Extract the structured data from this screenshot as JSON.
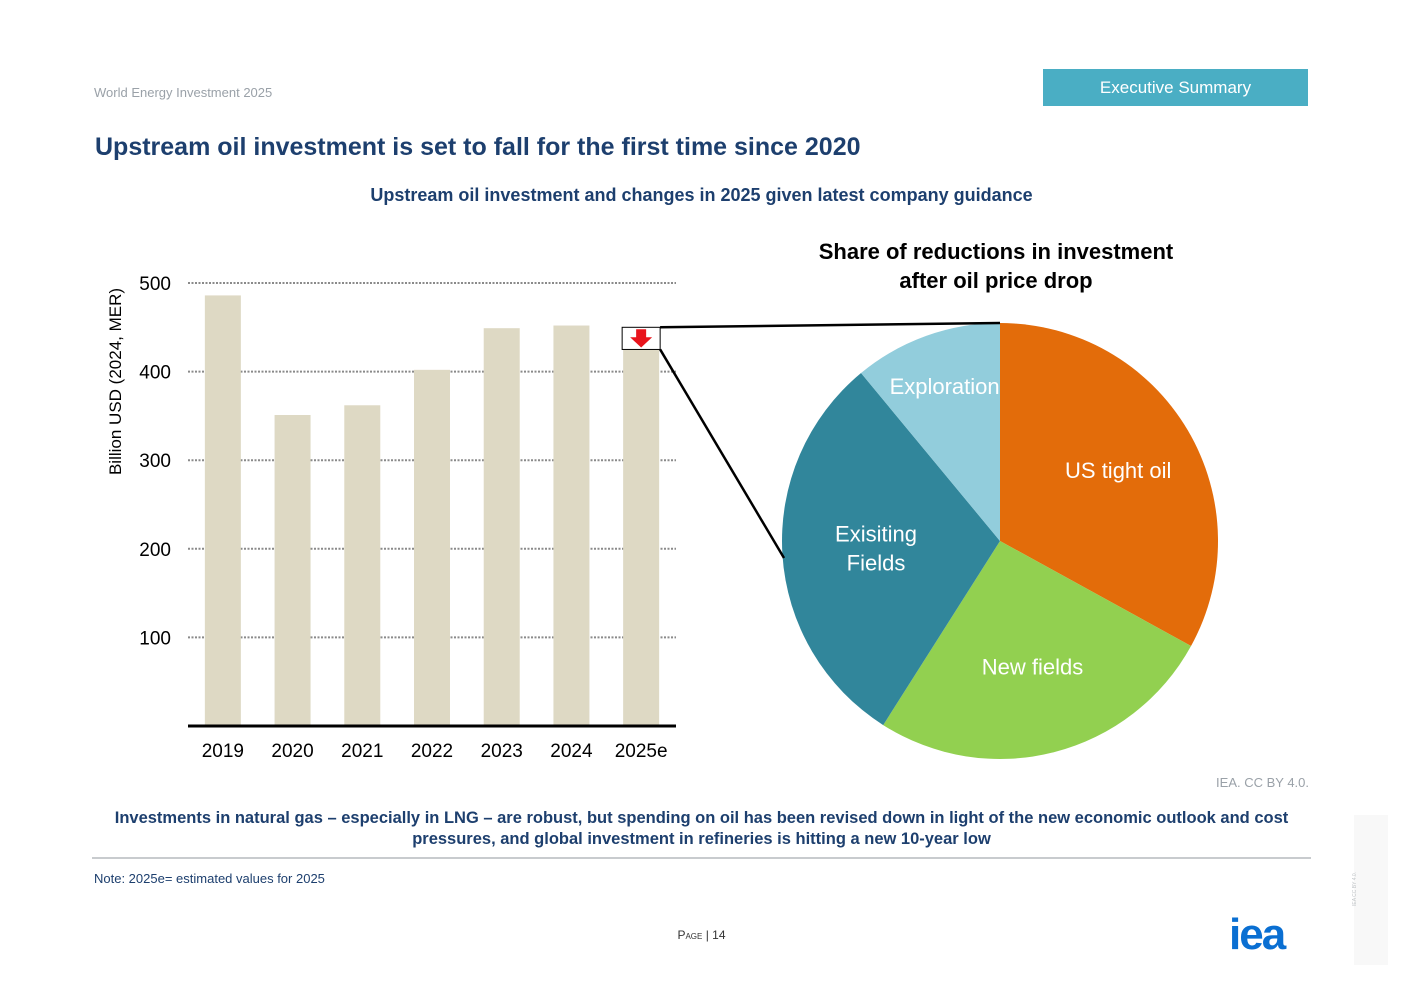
{
  "header": {
    "report_title": "World Energy Investment 2025",
    "section_badge": "Executive Summary",
    "page_title": "Upstream oil investment is set to fall for the first time since 2020"
  },
  "chart_heading": "Upstream oil investment and changes in 2025 given latest company guidance",
  "chart_data": [
    {
      "type": "bar",
      "title": "",
      "ylabel": "Billion USD (2024, MER)",
      "xlabel": "",
      "categories": [
        "2019",
        "2020",
        "2021",
        "2022",
        "2023",
        "2024",
        "2025e"
      ],
      "values": [
        486,
        351,
        362,
        402,
        449,
        452,
        425
      ],
      "yticks": [
        100,
        200,
        300,
        400,
        500
      ],
      "ylim": [
        0,
        500
      ],
      "grid": true,
      "bar_color": "#ded9c4",
      "annotation": {
        "category": "2025e",
        "marker": "down-arrow",
        "from": 450,
        "to": 425,
        "color": "#e8141c"
      }
    },
    {
      "type": "pie",
      "title_lines": [
        "Share of reductions in investment",
        "after oil price drop"
      ],
      "slices": [
        {
          "label": "US tight oil",
          "value": 33,
          "color": "#e36c0a"
        },
        {
          "label": "New fields",
          "value": 26,
          "color": "#92d050"
        },
        {
          "label": "Exisiting Fields",
          "value": 30,
          "color": "#31869b"
        },
        {
          "label": "Exploration",
          "value": 11,
          "color": "#92cddc"
        }
      ]
    }
  ],
  "credit": "IEA. CC BY 4.0.",
  "caption": "Investments in natural gas – especially in LNG – are robust, but spending on oil has been revised down in light of the new economic outlook and cost pressures, and global investment in refineries is hitting a new 10-year low",
  "note": "Note: 2025e= estimated values for 2025",
  "footer": {
    "page_label": "Page",
    "page_number": "14",
    "logo": "iea",
    "side_license": "IEA CC BY 4.0."
  },
  "colors": {
    "accent": "#4aaec4",
    "navy": "#1d3f6e",
    "iea_blue": "#0a6fd2"
  }
}
